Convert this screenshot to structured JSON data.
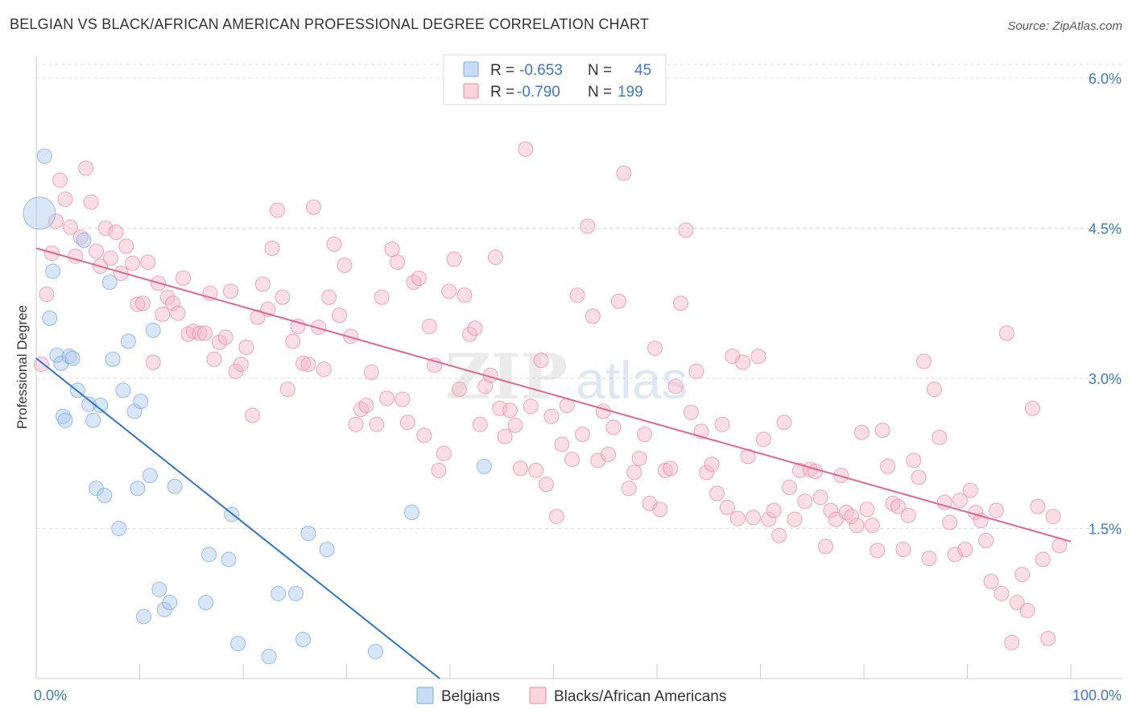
{
  "header": {
    "title": "BELGIAN VS BLACK/AFRICAN AMERICAN PROFESSIONAL DEGREE CORRELATION CHART",
    "source": "Source: ZipAtlas.com"
  },
  "watermark": {
    "zip": "ZIP",
    "atlas": "atlas"
  },
  "chart_data": {
    "type": "scatter",
    "xlabel": "",
    "ylabel": "Professional Degree",
    "xlim": [
      0,
      100
    ],
    "ylim": [
      0,
      6.3
    ],
    "x_tick_labels": [
      "0.0%",
      "100.0%"
    ],
    "y_ticks": [
      1.5,
      3.0,
      4.5,
      6.0
    ],
    "y_tick_labels": [
      "1.5%",
      "3.0%",
      "4.5%",
      "6.0%"
    ],
    "grid": "horizontal dashed",
    "legend_top": [
      {
        "r_label": "R =",
        "r_value": "-0.653",
        "n_label": "N =",
        "n_value": "45",
        "color": "#a9c8f0"
      },
      {
        "r_label": "R =",
        "r_value": "-0.790",
        "n_label": "N =",
        "n_value": "199",
        "color": "#f4b6c8"
      }
    ],
    "legend_bottom": [
      "Belgians",
      "Blacks/African Americans"
    ],
    "series": [
      {
        "name": "Belgians",
        "color": "#a9c8f0",
        "stroke": "#7aa8e0",
        "trend_color": "#2d73d2",
        "trend": {
          "x": [
            0,
            39
          ],
          "y": [
            3.2,
            0.0
          ]
        },
        "points": [
          [
            0.3,
            4.65
          ],
          [
            0.8,
            5.22
          ],
          [
            1.3,
            3.6
          ],
          [
            1.6,
            4.07
          ],
          [
            2.0,
            3.23
          ],
          [
            2.4,
            3.15
          ],
          [
            2.6,
            2.62
          ],
          [
            2.8,
            2.58
          ],
          [
            3.2,
            3.22
          ],
          [
            3.5,
            3.2
          ],
          [
            4.0,
            2.88
          ],
          [
            4.6,
            4.38
          ],
          [
            5.1,
            2.74
          ],
          [
            5.5,
            2.58
          ],
          [
            5.8,
            1.9
          ],
          [
            6.2,
            2.73
          ],
          [
            6.6,
            1.83
          ],
          [
            7.1,
            3.96
          ],
          [
            7.4,
            3.19
          ],
          [
            8.0,
            1.5
          ],
          [
            8.4,
            2.88
          ],
          [
            8.9,
            3.37
          ],
          [
            9.5,
            2.67
          ],
          [
            9.8,
            1.9
          ],
          [
            10.1,
            2.77
          ],
          [
            10.4,
            0.62
          ],
          [
            11.0,
            2.03
          ],
          [
            11.3,
            3.48
          ],
          [
            11.9,
            0.89
          ],
          [
            12.4,
            0.69
          ],
          [
            12.9,
            0.76
          ],
          [
            13.4,
            1.92
          ],
          [
            16.4,
            0.76
          ],
          [
            16.7,
            1.24
          ],
          [
            18.6,
            1.19
          ],
          [
            18.9,
            1.64
          ],
          [
            19.5,
            0.35
          ],
          [
            22.5,
            0.22
          ],
          [
            23.4,
            0.85
          ],
          [
            25.1,
            0.85
          ],
          [
            25.8,
            0.39
          ],
          [
            26.3,
            1.45
          ],
          [
            28.1,
            1.29
          ],
          [
            32.8,
            0.27
          ],
          [
            36.3,
            1.66
          ],
          [
            43.3,
            2.12
          ]
        ]
      },
      {
        "name": "Blacks/African Americans",
        "color": "#f4b6c8",
        "stroke": "#eb8aa8",
        "trend_color": "#e06590",
        "trend": {
          "x": [
            0,
            100
          ],
          "y": [
            4.3,
            1.37
          ]
        },
        "points": [
          [
            0.5,
            3.14
          ],
          [
            1.0,
            3.84
          ],
          [
            1.5,
            4.25
          ],
          [
            1.9,
            4.57
          ],
          [
            2.3,
            4.98
          ],
          [
            2.8,
            4.79
          ],
          [
            3.3,
            4.51
          ],
          [
            3.8,
            4.22
          ],
          [
            4.3,
            4.41
          ],
          [
            4.8,
            5.1
          ],
          [
            5.3,
            4.76
          ],
          [
            5.8,
            4.27
          ],
          [
            6.2,
            4.12
          ],
          [
            6.7,
            4.5
          ],
          [
            7.2,
            4.2
          ],
          [
            7.7,
            4.46
          ],
          [
            8.2,
            4.05
          ],
          [
            8.7,
            4.32
          ],
          [
            9.3,
            4.15
          ],
          [
            9.8,
            3.74
          ],
          [
            10.3,
            3.75
          ],
          [
            10.8,
            4.16
          ],
          [
            11.3,
            3.16
          ],
          [
            11.8,
            3.95
          ],
          [
            12.2,
            3.64
          ],
          [
            12.7,
            3.81
          ],
          [
            13.2,
            3.75
          ],
          [
            13.7,
            3.65
          ],
          [
            14.2,
            4.0
          ],
          [
            14.7,
            3.44
          ],
          [
            15.2,
            3.47
          ],
          [
            15.8,
            3.45
          ],
          [
            16.3,
            3.45
          ],
          [
            16.8,
            3.85
          ],
          [
            17.2,
            3.19
          ],
          [
            17.7,
            3.36
          ],
          [
            18.3,
            3.41
          ],
          [
            18.8,
            3.87
          ],
          [
            19.3,
            3.07
          ],
          [
            19.8,
            3.14
          ],
          [
            20.3,
            3.31
          ],
          [
            20.9,
            2.63
          ],
          [
            21.4,
            3.61
          ],
          [
            21.9,
            3.94
          ],
          [
            22.4,
            3.69
          ],
          [
            22.8,
            4.3
          ],
          [
            23.3,
            4.68
          ],
          [
            23.8,
            3.81
          ],
          [
            24.3,
            2.89
          ],
          [
            24.8,
            3.37
          ],
          [
            25.3,
            3.52
          ],
          [
            25.8,
            3.15
          ],
          [
            26.3,
            3.14
          ],
          [
            26.8,
            4.71
          ],
          [
            27.3,
            3.51
          ],
          [
            27.8,
            3.09
          ],
          [
            28.3,
            3.81
          ],
          [
            28.8,
            4.34
          ],
          [
            29.3,
            3.63
          ],
          [
            29.8,
            4.13
          ],
          [
            30.4,
            3.42
          ],
          [
            30.9,
            2.54
          ],
          [
            31.4,
            2.69
          ],
          [
            31.9,
            2.73
          ],
          [
            32.4,
            3.06
          ],
          [
            32.9,
            2.54
          ],
          [
            33.4,
            3.81
          ],
          [
            33.9,
            2.8
          ],
          [
            34.4,
            4.29
          ],
          [
            34.9,
            4.16
          ],
          [
            35.4,
            2.79
          ],
          [
            35.9,
            2.56
          ],
          [
            36.5,
            3.96
          ],
          [
            37.0,
            4.0
          ],
          [
            37.5,
            2.43
          ],
          [
            38.0,
            3.52
          ],
          [
            38.5,
            3.13
          ],
          [
            38.9,
            2.08
          ],
          [
            39.4,
            2.25
          ],
          [
            39.9,
            3.87
          ],
          [
            40.4,
            4.19
          ],
          [
            40.9,
            2.89
          ],
          [
            41.4,
            3.83
          ],
          [
            41.9,
            3.44
          ],
          [
            42.4,
            3.5
          ],
          [
            42.9,
            2.54
          ],
          [
            43.4,
            2.92
          ],
          [
            43.9,
            3.03
          ],
          [
            44.4,
            4.21
          ],
          [
            44.8,
            2.7
          ],
          [
            45.3,
            2.42
          ],
          [
            45.8,
            2.68
          ],
          [
            46.3,
            2.53
          ],
          [
            46.8,
            2.1
          ],
          [
            47.3,
            5.29
          ],
          [
            47.8,
            2.72
          ],
          [
            48.3,
            2.08
          ],
          [
            48.8,
            3.18
          ],
          [
            49.3,
            1.94
          ],
          [
            49.8,
            2.62
          ],
          [
            50.3,
            1.62
          ],
          [
            50.8,
            2.34
          ],
          [
            51.3,
            2.73
          ],
          [
            51.8,
            2.19
          ],
          [
            52.3,
            3.83
          ],
          [
            52.8,
            2.44
          ],
          [
            53.3,
            4.52
          ],
          [
            53.8,
            3.62
          ],
          [
            54.3,
            2.18
          ],
          [
            54.8,
            2.67
          ],
          [
            55.3,
            2.24
          ],
          [
            55.8,
            2.51
          ],
          [
            56.3,
            3.77
          ],
          [
            56.8,
            5.05
          ],
          [
            57.3,
            1.9
          ],
          [
            57.8,
            2.06
          ],
          [
            58.3,
            2.2
          ],
          [
            58.8,
            2.44
          ],
          [
            59.3,
            1.75
          ],
          [
            59.8,
            3.3
          ],
          [
            60.3,
            1.69
          ],
          [
            60.8,
            2.08
          ],
          [
            61.3,
            2.1
          ],
          [
            61.8,
            2.92
          ],
          [
            62.3,
            3.75
          ],
          [
            62.8,
            4.48
          ],
          [
            63.3,
            2.66
          ],
          [
            63.8,
            3.07
          ],
          [
            64.3,
            2.47
          ],
          [
            64.8,
            2.06
          ],
          [
            65.3,
            2.14
          ],
          [
            65.8,
            1.85
          ],
          [
            66.3,
            2.54
          ],
          [
            66.8,
            1.71
          ],
          [
            67.3,
            3.22
          ],
          [
            67.8,
            1.6
          ],
          [
            68.3,
            3.16
          ],
          [
            68.8,
            2.22
          ],
          [
            69.3,
            1.61
          ],
          [
            69.8,
            3.22
          ],
          [
            70.3,
            2.39
          ],
          [
            70.8,
            1.59
          ],
          [
            71.3,
            1.68
          ],
          [
            71.8,
            1.43
          ],
          [
            72.3,
            2.56
          ],
          [
            72.8,
            1.91
          ],
          [
            73.3,
            1.59
          ],
          [
            73.8,
            2.08
          ],
          [
            74.3,
            1.77
          ],
          [
            74.8,
            2.09
          ],
          [
            75.3,
            2.07
          ],
          [
            75.8,
            1.81
          ],
          [
            76.3,
            1.32
          ],
          [
            76.8,
            1.68
          ],
          [
            77.3,
            1.59
          ],
          [
            77.8,
            2.03
          ],
          [
            78.3,
            1.66
          ],
          [
            78.8,
            1.62
          ],
          [
            79.3,
            1.53
          ],
          [
            79.8,
            2.46
          ],
          [
            80.3,
            1.69
          ],
          [
            80.8,
            1.53
          ],
          [
            81.3,
            1.28
          ],
          [
            81.8,
            2.48
          ],
          [
            82.3,
            2.12
          ],
          [
            82.8,
            1.75
          ],
          [
            83.3,
            1.72
          ],
          [
            83.8,
            1.29
          ],
          [
            84.3,
            1.63
          ],
          [
            84.8,
            2.18
          ],
          [
            85.3,
            2.01
          ],
          [
            85.8,
            3.17
          ],
          [
            86.3,
            1.2
          ],
          [
            86.8,
            2.89
          ],
          [
            87.3,
            2.41
          ],
          [
            87.8,
            1.76
          ],
          [
            88.3,
            1.56
          ],
          [
            88.8,
            1.24
          ],
          [
            89.3,
            1.78
          ],
          [
            89.8,
            1.29
          ],
          [
            90.3,
            1.88
          ],
          [
            90.8,
            1.66
          ],
          [
            91.3,
            1.58
          ],
          [
            91.8,
            1.38
          ],
          [
            92.3,
            0.97
          ],
          [
            92.8,
            1.68
          ],
          [
            93.3,
            0.85
          ],
          [
            93.8,
            3.45
          ],
          [
            94.3,
            0.36
          ],
          [
            94.8,
            0.76
          ],
          [
            95.3,
            1.04
          ],
          [
            95.8,
            0.68
          ],
          [
            96.3,
            2.7
          ],
          [
            96.8,
            1.72
          ],
          [
            97.3,
            1.19
          ],
          [
            97.8,
            0.4
          ],
          [
            98.3,
            1.62
          ],
          [
            98.9,
            1.33
          ]
        ]
      }
    ]
  }
}
